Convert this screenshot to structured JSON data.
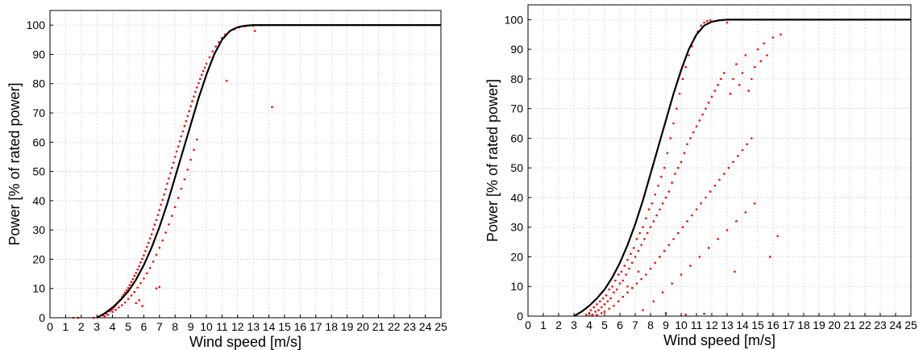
{
  "chart_data": [
    {
      "type": "scatter",
      "xlabel": "Wind speed [m/s]",
      "ylabel": "Power [% of rated power]",
      "xlim": [
        0,
        25
      ],
      "ylim": [
        0,
        105
      ],
      "xticks": [
        0,
        1,
        2,
        3,
        4,
        5,
        6,
        7,
        8,
        9,
        10,
        11,
        12,
        13,
        14,
        15,
        16,
        17,
        18,
        19,
        20,
        21,
        22,
        23,
        24,
        25
      ],
      "yticks": [
        0,
        10,
        20,
        30,
        40,
        50,
        60,
        70,
        80,
        90,
        100
      ],
      "grid": true,
      "colors": {
        "scatter": "#ff0000",
        "curve": "#000000"
      },
      "curve": {
        "x": [
          3,
          3.5,
          4,
          4.5,
          5,
          5.5,
          6,
          6.5,
          7,
          7.5,
          8,
          8.5,
          9,
          9.5,
          10,
          10.5,
          11,
          11.5,
          12,
          12.5,
          13,
          14,
          15,
          20,
          25
        ],
        "y": [
          0,
          1.5,
          3.5,
          6,
          9,
          13,
          18,
          24,
          31,
          39,
          48,
          57,
          66,
          75,
          83,
          90,
          95,
          98,
          99.3,
          99.8,
          100,
          100,
          100,
          100,
          100
        ]
      },
      "scatter": {
        "x": [
          2.8,
          3.1,
          3.4,
          3.6,
          3.8,
          3.9,
          4.0,
          4.1,
          4.2,
          4.3,
          4.4,
          4.5,
          4.6,
          4.7,
          4.8,
          4.9,
          5.0,
          5.1,
          5.2,
          5.3,
          5.4,
          5.5,
          5.6,
          5.7,
          5.8,
          5.9,
          6.0,
          6.1,
          6.2,
          6.3,
          6.4,
          6.5,
          6.6,
          6.7,
          6.8,
          6.9,
          7.0,
          7.1,
          7.2,
          7.3,
          7.4,
          7.5,
          7.6,
          7.7,
          7.8,
          7.9,
          8.0,
          8.1,
          8.2,
          8.3,
          8.4,
          8.5,
          8.6,
          8.7,
          8.8,
          8.9,
          9.0,
          9.1,
          9.2,
          9.3,
          9.4,
          9.5,
          9.6,
          9.7,
          9.8,
          9.9,
          10.0,
          10.2,
          10.4,
          10.6,
          10.8,
          11.0,
          11.2,
          11.5,
          11.8,
          12.1,
          12.5,
          13.0,
          13.5,
          14.0,
          3.5,
          3.7,
          4.0,
          4.2,
          4.4,
          4.6,
          4.8,
          5.0,
          5.2,
          5.4,
          5.6,
          5.8,
          6.0,
          6.2,
          6.4,
          6.6,
          6.8,
          7.0,
          7.2,
          7.4,
          7.6,
          7.8,
          8.0,
          8.2,
          8.4,
          8.6,
          8.8,
          9.0,
          9.2,
          9.4,
          5.5,
          5.7,
          5.9,
          6.8,
          7.0,
          14.2,
          11.3,
          13.1,
          1.8,
          1.5
        ],
        "y": [
          0,
          0.3,
          0.8,
          1.5,
          2.2,
          2.6,
          3.0,
          3.6,
          4.2,
          4.9,
          5.5,
          6.2,
          7.0,
          7.8,
          8.6,
          9.4,
          10.2,
          11.2,
          12.2,
          13.2,
          14.3,
          15.3,
          16.5,
          17.6,
          18.9,
          20.1,
          21.3,
          22.8,
          24.2,
          25.6,
          27.1,
          28.5,
          30.2,
          31.8,
          33.4,
          35.1,
          36.8,
          38.6,
          40.3,
          42.1,
          43.9,
          45.8,
          47.6,
          49.4,
          51.2,
          53.0,
          55.0,
          56.8,
          58.5,
          60.3,
          62.0,
          63.7,
          65.5,
          67.2,
          68.9,
          70.6,
          72.3,
          74.0,
          75.6,
          77.2,
          78.7,
          80.2,
          81.6,
          83.0,
          84.3,
          85.5,
          86.8,
          89.0,
          91.0,
          92.7,
          94.2,
          95.6,
          96.8,
          97.9,
          98.6,
          99.2,
          99.6,
          99.8,
          100,
          100,
          0.5,
          1.0,
          2.0,
          2.7,
          3.5,
          4.3,
          5.2,
          6.4,
          7.6,
          8.8,
          10.3,
          11.8,
          13.4,
          15.2,
          17.0,
          19.2,
          21.5,
          23.9,
          26.4,
          29.1,
          31.9,
          34.8,
          37.8,
          40.9,
          44.1,
          47.3,
          50.6,
          54.0,
          57.4,
          60.9,
          5.0,
          6.0,
          4.0,
          10.0,
          10.5,
          72,
          81,
          98,
          0,
          0
        ]
      }
    },
    {
      "type": "scatter",
      "xlabel": "Wind speed [m/s]",
      "ylabel": "Power [% of rated power]",
      "xlim": [
        0,
        25
      ],
      "ylim": [
        0,
        105
      ],
      "xticks": [
        0,
        1,
        2,
        3,
        4,
        5,
        6,
        7,
        8,
        9,
        10,
        11,
        12,
        13,
        14,
        15,
        16,
        17,
        18,
        19,
        20,
        21,
        22,
        23,
        24,
        25
      ],
      "yticks": [
        0,
        10,
        20,
        30,
        40,
        50,
        60,
        70,
        80,
        90,
        100
      ],
      "grid": true,
      "colors": {
        "scatter": "#ff0000",
        "curve": "#000000"
      },
      "curve": {
        "x": [
          3,
          3.5,
          4,
          4.5,
          5,
          5.5,
          6,
          6.5,
          7,
          7.5,
          8,
          8.5,
          9,
          9.5,
          10,
          10.5,
          11,
          11.5,
          12,
          12.5,
          13,
          14,
          15,
          20,
          25
        ],
        "y": [
          0,
          1.5,
          3.5,
          6,
          9,
          13,
          18,
          24,
          31,
          39,
          48,
          57,
          66,
          75,
          83,
          90,
          95,
          98,
          99.3,
          99.8,
          100,
          100,
          100,
          100,
          100
        ]
      },
      "scatter": {
        "x": [
          3.8,
          4.0,
          4.1,
          4.2,
          4.3,
          4.4,
          4.5,
          4.6,
          4.7,
          4.8,
          4.9,
          5.0,
          5.1,
          5.2,
          5.3,
          5.4,
          5.5,
          5.6,
          5.7,
          5.8,
          5.9,
          6.0,
          6.1,
          6.2,
          6.3,
          6.4,
          6.5,
          6.6,
          6.7,
          6.8,
          6.9,
          7.0,
          7.1,
          7.2,
          7.3,
          7.4,
          7.5,
          7.6,
          7.7,
          7.8,
          7.9,
          8.0,
          8.1,
          8.2,
          8.3,
          8.4,
          8.5,
          8.6,
          8.7,
          8.8,
          8.9,
          9.0,
          9.1,
          9.2,
          9.3,
          9.4,
          9.5,
          9.6,
          9.7,
          9.8,
          9.9,
          10.0,
          10.1,
          10.2,
          10.3,
          10.4,
          10.5,
          10.6,
          10.7,
          10.8,
          10.9,
          11.0,
          11.1,
          11.2,
          11.3,
          11.4,
          11.5,
          11.6,
          11.7,
          11.8,
          11.9,
          12.0,
          12.2,
          12.4,
          12.6,
          12.8,
          13.0,
          13.2,
          13.4,
          13.6,
          13.8,
          14.0,
          14.2,
          14.4,
          14.6,
          14.8,
          15.0,
          15.2,
          15.4,
          15.6,
          16.0,
          16.5,
          4.2,
          4.5,
          4.8,
          5.0,
          5.3,
          5.6,
          5.9,
          6.2,
          6.5,
          6.8,
          7.1,
          7.4,
          7.7,
          8.0,
          8.3,
          8.6,
          8.9,
          9.2,
          9.5,
          9.8,
          10.1,
          10.4,
          10.7,
          11.0,
          11.3,
          11.6,
          11.9,
          12.2,
          12.5,
          12.8,
          13.1,
          13.4,
          13.7,
          14.0,
          14.3,
          14.6,
          7.5,
          8.2,
          8.8,
          9.4,
          10.0,
          10.6,
          11.2,
          11.8,
          12.4,
          13.0,
          13.6,
          14.2,
          14.8,
          16.3,
          15.8,
          9.0,
          10.3,
          11.5,
          6.5,
          7.2,
          13.5
        ],
        "y": [
          0.5,
          1.0,
          2.0,
          0.5,
          3.0,
          1.5,
          4.0,
          2.0,
          5.0,
          3.0,
          6.0,
          4.0,
          7.0,
          5.0,
          9.0,
          6.0,
          10.0,
          8.0,
          12.0,
          9.0,
          14.0,
          11.0,
          15.0,
          12.0,
          17.0,
          14.0,
          19.0,
          16.0,
          21.0,
          18.0,
          23.0,
          20.0,
          26.0,
          22.0,
          28.0,
          24.0,
          30.0,
          26.0,
          33.0,
          28.0,
          36.0,
          30.0,
          38.0,
          32.0,
          41.0,
          34.0,
          44.0,
          36.0,
          47.0,
          38.0,
          50.0,
          40.0,
          55.0,
          42.0,
          60.0,
          45.0,
          65.0,
          48.0,
          70.0,
          50.0,
          75.0,
          52.0,
          80.0,
          55.0,
          84.0,
          58.0,
          88.0,
          60.0,
          91.0,
          62.0,
          94.0,
          64.0,
          96.0,
          66.0,
          98.0,
          68.0,
          99.0,
          70.0,
          99.5,
          72.0,
          99.8,
          74.0,
          76.0,
          78.0,
          80.0,
          82.0,
          99.0,
          75.0,
          80.0,
          85.0,
          78.0,
          82.0,
          88.0,
          76.0,
          80.0,
          84.0,
          90.0,
          86.0,
          92.0,
          88.0,
          94.0,
          95.0,
          0.2,
          0.4,
          1.0,
          1.5,
          2.5,
          3.5,
          5.0,
          6.5,
          8.0,
          9.5,
          11.0,
          12.5,
          14.0,
          16.0,
          18.0,
          20.0,
          22.0,
          24.0,
          26.0,
          28.0,
          30.0,
          32.0,
          34.0,
          36.0,
          38.0,
          40.0,
          42.0,
          44.0,
          46.0,
          48.0,
          50.0,
          52.0,
          54.0,
          56.0,
          58.0,
          60.0,
          2.0,
          5.0,
          8.0,
          11.0,
          14.0,
          17.0,
          20.0,
          23.0,
          26.0,
          29.0,
          32.0,
          35.0,
          38.0,
          27.0,
          20.0,
          1.0,
          0.5,
          0.8,
          10.0,
          15.0,
          15.0
        ]
      }
    }
  ]
}
